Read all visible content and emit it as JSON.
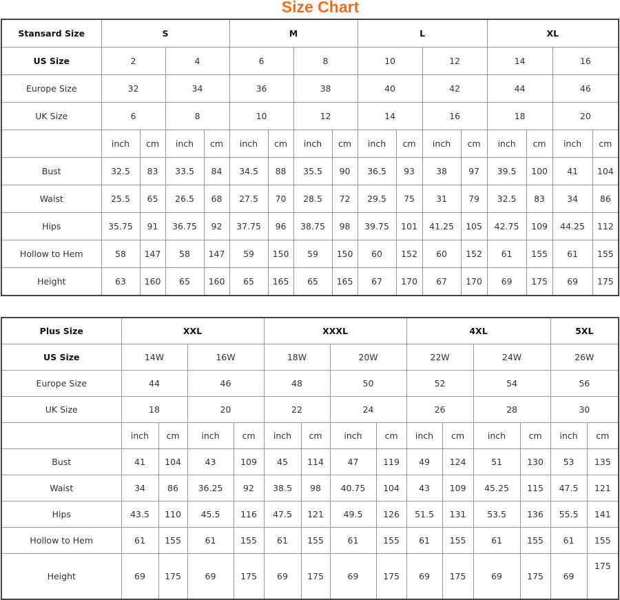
{
  "title": "Size Chart",
  "colors": {
    "title": "#f26b1d",
    "border": "#999999"
  },
  "standard": {
    "corner": "Stansard Size",
    "groups": [
      "S",
      "M",
      "L",
      "XL"
    ],
    "size_rows": [
      {
        "label": "US Size",
        "values": [
          "2",
          "4",
          "6",
          "8",
          "10",
          "12",
          "14",
          "16"
        ]
      },
      {
        "label": "Europe Size",
        "values": [
          "32",
          "34",
          "36",
          "38",
          "40",
          "42",
          "44",
          "46"
        ]
      },
      {
        "label": "UK Size",
        "values": [
          "6",
          "8",
          "10",
          "12",
          "14",
          "16",
          "18",
          "20"
        ]
      }
    ],
    "units": [
      "inch",
      "cm",
      "inch",
      "cm",
      "inch",
      "cm",
      "inch",
      "cm",
      "inch",
      "cm",
      "inch",
      "cm",
      "inch",
      "cm",
      "inch",
      "cm"
    ],
    "measurements": [
      {
        "label": "Bust",
        "values": [
          "32.5",
          "83",
          "33.5",
          "84",
          "34.5",
          "88",
          "35.5",
          "90",
          "36.5",
          "93",
          "38",
          "97",
          "39.5",
          "100",
          "41",
          "104"
        ]
      },
      {
        "label": "Waist",
        "values": [
          "25.5",
          "65",
          "26.5",
          "68",
          "27.5",
          "70",
          "28.5",
          "72",
          "29.5",
          "75",
          "31",
          "79",
          "32.5",
          "83",
          "34",
          "86"
        ]
      },
      {
        "label": "Hips",
        "values": [
          "35.75",
          "91",
          "36.75",
          "92",
          "37.75",
          "96",
          "38.75",
          "98",
          "39.75",
          "101",
          "41.25",
          "105",
          "42.75",
          "109",
          "44.25",
          "112"
        ]
      },
      {
        "label": "Hollow to Hem",
        "values": [
          "58",
          "147",
          "58",
          "147",
          "59",
          "150",
          "59",
          "150",
          "60",
          "152",
          "60",
          "152",
          "61",
          "155",
          "61",
          "155"
        ]
      },
      {
        "label": "Height",
        "values": [
          "63",
          "160",
          "65",
          "160",
          "65",
          "165",
          "65",
          "165",
          "67",
          "170",
          "67",
          "170",
          "69",
          "175",
          "69",
          "175"
        ]
      }
    ]
  },
  "plus": {
    "corner": "Plus Size",
    "groups": [
      "XXL",
      "XXXL",
      "4XL",
      "5XL"
    ],
    "size_rows": [
      {
        "label": "US Size",
        "values": [
          "14W",
          "16W",
          "18W",
          "20W",
          "22W",
          "24W",
          "26W"
        ]
      },
      {
        "label": "Europe Size",
        "values": [
          "44",
          "46",
          "48",
          "50",
          "52",
          "54",
          "56"
        ]
      },
      {
        "label": "UK Size",
        "values": [
          "18",
          "20",
          "22",
          "24",
          "26",
          "28",
          "30"
        ]
      }
    ],
    "units": [
      "inch",
      "cm",
      "inch",
      "cm",
      "inch",
      "cm",
      "inch",
      "cm",
      "inch",
      "cm",
      "inch",
      "cm",
      "inch",
      "cm"
    ],
    "measurements": [
      {
        "label": "Bust",
        "values": [
          "41",
          "104",
          "43",
          "109",
          "45",
          "114",
          "47",
          "119",
          "49",
          "124",
          "51",
          "130",
          "53",
          "135"
        ]
      },
      {
        "label": "Waist",
        "values": [
          "34",
          "86",
          "36.25",
          "92",
          "38.5",
          "98",
          "40.75",
          "104",
          "43",
          "109",
          "45.25",
          "115",
          "47.5",
          "121"
        ]
      },
      {
        "label": "Hips",
        "values": [
          "43.5",
          "110",
          "45.5",
          "116",
          "47.5",
          "121",
          "49.5",
          "126",
          "51.5",
          "131",
          "53.5",
          "136",
          "55.5",
          "141"
        ]
      },
      {
        "label": "Hollow to Hem",
        "values": [
          "61",
          "155",
          "61",
          "155",
          "61",
          "155",
          "61",
          "155",
          "61",
          "155",
          "61",
          "155",
          "61",
          "155"
        ]
      },
      {
        "label": "Height",
        "values": [
          "69",
          "175",
          "69",
          "175",
          "69",
          "175",
          "69",
          "175",
          "69",
          "175",
          "69",
          "175",
          "69",
          "175"
        ]
      }
    ]
  }
}
